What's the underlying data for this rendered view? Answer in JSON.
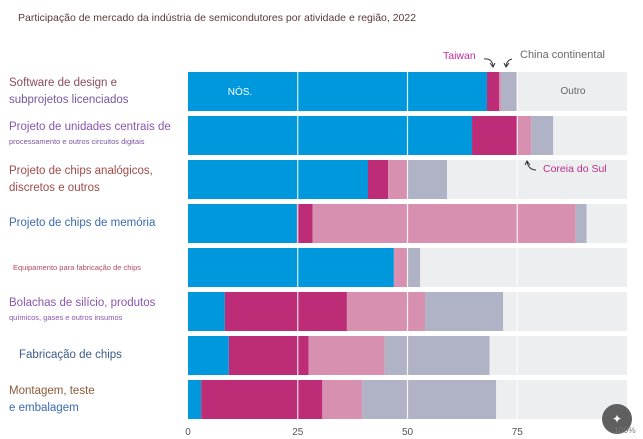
{
  "chart_data": {
    "type": "bar",
    "stacked": true,
    "orientation": "horizontal",
    "title": "Participação de mercado da indústria de semicondutores por atividade e região, 2022",
    "xlabel": "",
    "ylabel": "",
    "xlim": [
      0,
      100
    ],
    "x_ticks": [
      "0",
      "25",
      "50",
      "75"
    ],
    "grid": true,
    "categories": [
      {
        "line1": "Software de design e",
        "line2": "subprojetos licenciados",
        "color": "#8a4a5a",
        "color2": "#7a55a0",
        "line2_small": false
      },
      {
        "line1": "Projeto de unidades centrais de",
        "line2": "processamento e outros circuitos digitais",
        "color": "#8a55b0",
        "color2": "#7a55a0",
        "line2_small": true
      },
      {
        "line1": "Projeto de chips analógicos,",
        "line2": "discretos e outros",
        "color": "#a04a4a",
        "color2": "#a04a4a",
        "line2_small": false
      },
      {
        "line1": "Projeto de chips de memória",
        "line2": "",
        "color": "#3a6ab0",
        "color2": "#3a6ab0",
        "line2_small": false
      },
      {
        "line1": "Equipamento para fabricação de chips",
        "line2": "",
        "color": "#b04a5a",
        "color2": "#b04a5a",
        "line1_small": true
      },
      {
        "line1": "Bolachas de silício, produtos",
        "line2": "químicos, gases e outros insumos",
        "color": "#8a55b0",
        "color2": "#8a55b0",
        "line2_small": true
      },
      {
        "line1": "Fabricação de chips",
        "line2": "",
        "color": "#3a5a8a",
        "color2": "#3a5a8a",
        "line2_small": false
      },
      {
        "line1": "Montagem, teste",
        "line2": "e embalagem",
        "color": "#8a5a3a",
        "color2": "#3a6ab0",
        "line2_small": false
      }
    ],
    "series": [
      {
        "name": "NÓS.",
        "color": "#0098dc",
        "values": [
          68.1,
          64.7,
          41.0,
          24.8,
          46.9,
          8.4,
          9.3,
          3.0
        ]
      },
      {
        "name": "Taiwan",
        "color": "#bd2d77",
        "values": [
          2.8,
          10.3,
          4.6,
          3.6,
          0.0,
          27.8,
          18.2,
          27.6
        ]
      },
      {
        "name": "Coreia do Sul",
        "color": "#d890b0",
        "values": [
          0.4,
          3.2,
          4.3,
          59.9,
          3.0,
          17.8,
          17.3,
          9.1
        ]
      },
      {
        "name": "China continental",
        "color": "#b0b2c6",
        "values": [
          3.6,
          5.0,
          9.1,
          2.5,
          3.0,
          17.8,
          23.9,
          30.5
        ]
      },
      {
        "name": "Outro",
        "color": "#edeef0",
        "values": [
          25.1,
          16.8,
          41.0,
          9.2,
          47.1,
          28.2,
          31.3,
          29.8
        ]
      }
    ],
    "annotations": {
      "us_label": "NÓS.",
      "other_label": "Outro",
      "taiwan": {
        "text": "Taiwan",
        "color": "#bd2d9a"
      },
      "china": {
        "text": "China continental",
        "color": "#6a6a6a"
      },
      "korea": {
        "text": "Coreia do Sul",
        "color": "#bd2d8a"
      }
    }
  },
  "ui": {
    "zoom_button_icon": "magic-wand-icon",
    "zoom_level": "100%"
  }
}
